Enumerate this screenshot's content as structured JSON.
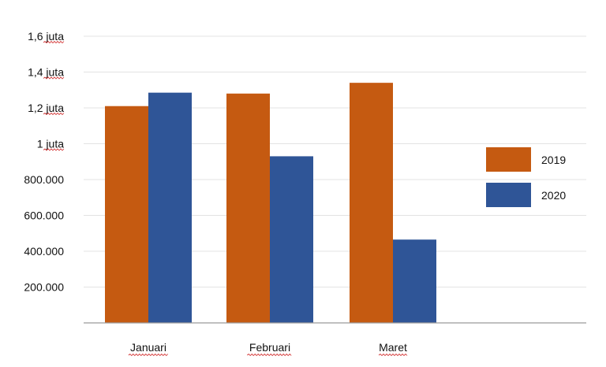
{
  "chart_data": {
    "type": "bar",
    "categories": [
      "Januari",
      "Februari",
      "Maret"
    ],
    "series": [
      {
        "name": "2019",
        "values": [
          1210000,
          1280000,
          1340000
        ],
        "color": "#c55a11"
      },
      {
        "name": "2020",
        "values": [
          1285000,
          930000,
          465000
        ],
        "color": "#2f5597"
      }
    ],
    "yticks": [
      {
        "value": 200000,
        "label": "200.000"
      },
      {
        "value": 400000,
        "label": "400.000"
      },
      {
        "value": 600000,
        "label": "600.000"
      },
      {
        "value": 800000,
        "label": "800.000"
      },
      {
        "value": 1000000,
        "label": "1 juta"
      },
      {
        "value": 1200000,
        "label": "1,2 juta"
      },
      {
        "value": 1400000,
        "label": "1,4 juta"
      },
      {
        "value": 1600000,
        "label": "1,6 juta"
      }
    ],
    "ylim": [
      0,
      1600000
    ],
    "grid": true,
    "legend_position": "right"
  }
}
